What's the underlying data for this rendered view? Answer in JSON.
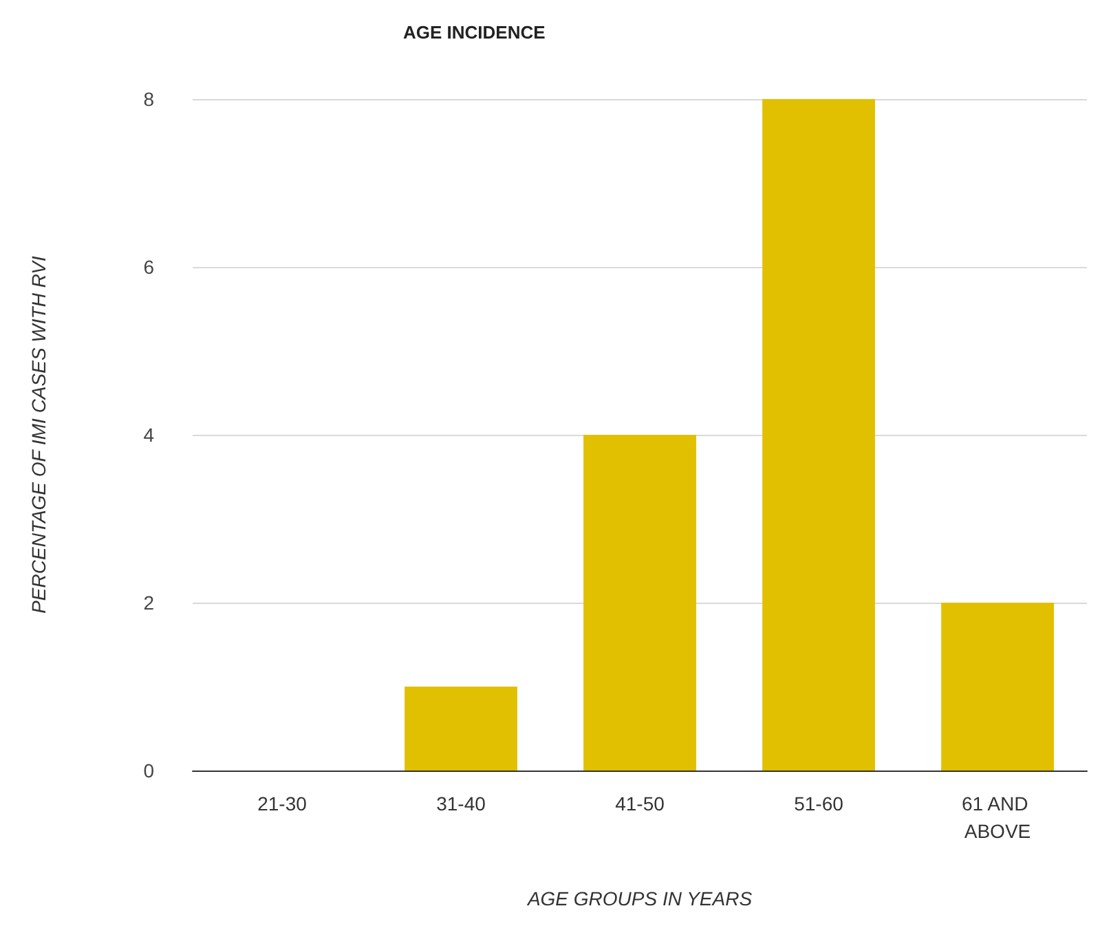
{
  "chart_data": {
    "type": "bar",
    "title": "AGE INCIDENCE",
    "xlabel": "AGE GROUPS IN YEARS",
    "ylabel": "PERCENTAGE OF IMI CASES WITH RVI",
    "categories": [
      "21-30",
      "31-40",
      "41-50",
      "51-60",
      "61 AND ABOVE"
    ],
    "values": [
      0,
      1,
      4,
      8,
      2
    ],
    "color": "#e0c000",
    "ylim": [
      0,
      8
    ],
    "yticks": [
      0,
      2,
      4,
      6,
      8
    ],
    "grid": "y"
  }
}
